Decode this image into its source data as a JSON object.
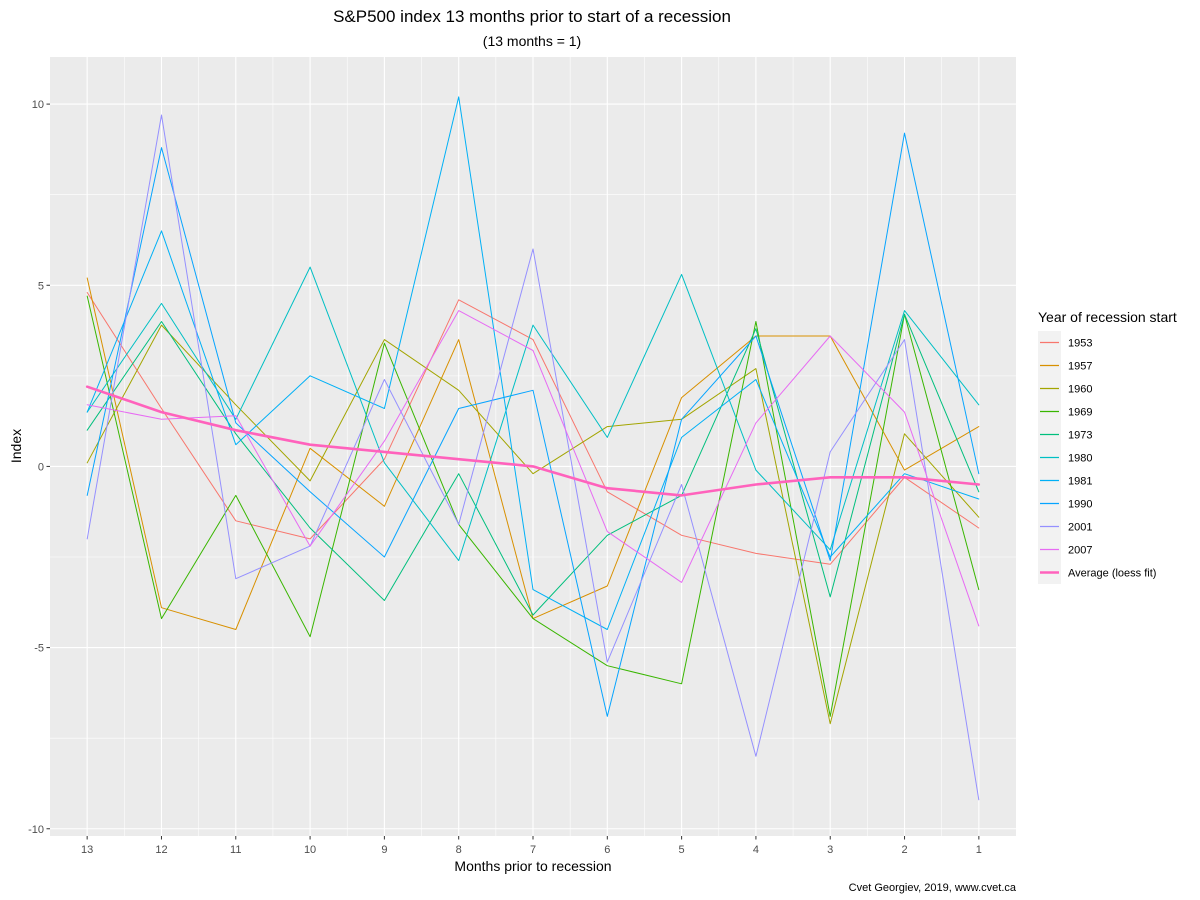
{
  "chart_data": {
    "type": "line",
    "title": "S&P500 index 13 months prior to start of a recession",
    "subtitle": "(13 months = 1)",
    "xlabel": "Months prior to recession",
    "ylabel": "Index",
    "caption": "Cvet Georgiev, 2019, www.cvet.ca",
    "x": [
      13,
      12,
      11,
      10,
      9,
      8,
      7,
      6,
      5,
      4,
      3,
      2,
      1
    ],
    "xlim": [
      13.5,
      0.5
    ],
    "ylim": [
      -10.2,
      11.3
    ],
    "y_ticks": [
      -10,
      -5,
      0,
      5,
      10
    ],
    "grid": true,
    "legend_title": "Year of recession start",
    "legend_position": "right",
    "series": [
      {
        "name": "1953",
        "color": "#F8766D",
        "values": [
          4.8,
          1.6,
          -1.5,
          -2.0,
          0.2,
          4.6,
          3.5,
          -0.7,
          -1.9,
          -2.4,
          -2.7,
          -0.3,
          -1.7
        ]
      },
      {
        "name": "1957",
        "color": "#D89000",
        "values": [
          5.2,
          -3.9,
          -4.5,
          0.5,
          -1.1,
          3.5,
          -4.2,
          -3.3,
          1.9,
          3.6,
          3.6,
          -0.1,
          1.1
        ]
      },
      {
        "name": "1960",
        "color": "#A3A500",
        "values": [
          0.1,
          3.9,
          1.7,
          -0.4,
          3.5,
          2.1,
          -0.2,
          1.1,
          1.3,
          2.7,
          -7.1,
          0.9,
          -1.4
        ]
      },
      {
        "name": "1969",
        "color": "#39B600",
        "values": [
          4.7,
          -4.2,
          -0.8,
          -4.7,
          3.4,
          -1.6,
          -4.2,
          -5.5,
          -6.0,
          4.0,
          -6.9,
          4.2,
          -3.4
        ]
      },
      {
        "name": "1973",
        "color": "#00BF7D",
        "values": [
          1.0,
          4.0,
          0.9,
          -1.7,
          -3.7,
          -0.2,
          -4.1,
          -1.9,
          -0.8,
          3.8,
          -3.6,
          4.2,
          -0.7
        ]
      },
      {
        "name": "1980",
        "color": "#00BFC4",
        "values": [
          1.5,
          4.5,
          1.3,
          5.5,
          0.1,
          -2.6,
          3.9,
          0.8,
          5.3,
          -0.1,
          -2.3,
          4.3,
          1.7
        ]
      },
      {
        "name": "1981",
        "color": "#00B0F6",
        "values": [
          1.5,
          6.5,
          0.6,
          2.5,
          1.6,
          10.2,
          -3.4,
          -4.5,
          0.8,
          2.4,
          -2.5,
          -0.2,
          -0.9
        ]
      },
      {
        "name": "1990",
        "color": "#06A4FF",
        "values": [
          -0.8,
          8.8,
          1.2,
          -0.7,
          -2.5,
          1.6,
          2.1,
          -6.9,
          1.3,
          3.6,
          -2.6,
          9.2,
          -0.2
        ]
      },
      {
        "name": "2001",
        "color": "#9590FF",
        "values": [
          -2.0,
          9.7,
          -3.1,
          -2.2,
          2.4,
          -1.6,
          6.0,
          -5.4,
          -0.5,
          -8.0,
          0.4,
          3.5,
          -9.2
        ]
      },
      {
        "name": "2007",
        "color": "#E76BF3",
        "values": [
          1.7,
          1.3,
          1.4,
          -2.2,
          0.7,
          4.3,
          3.2,
          -1.8,
          -3.2,
          1.2,
          3.6,
          1.5,
          -4.4
        ]
      },
      {
        "name": "Average (loess fit)",
        "color": "#FF62BC",
        "values": [
          2.2,
          1.5,
          1.0,
          0.6,
          0.4,
          0.2,
          0.0,
          -0.6,
          -0.8,
          -0.5,
          -0.3,
          -0.3,
          -0.5
        ]
      }
    ]
  }
}
